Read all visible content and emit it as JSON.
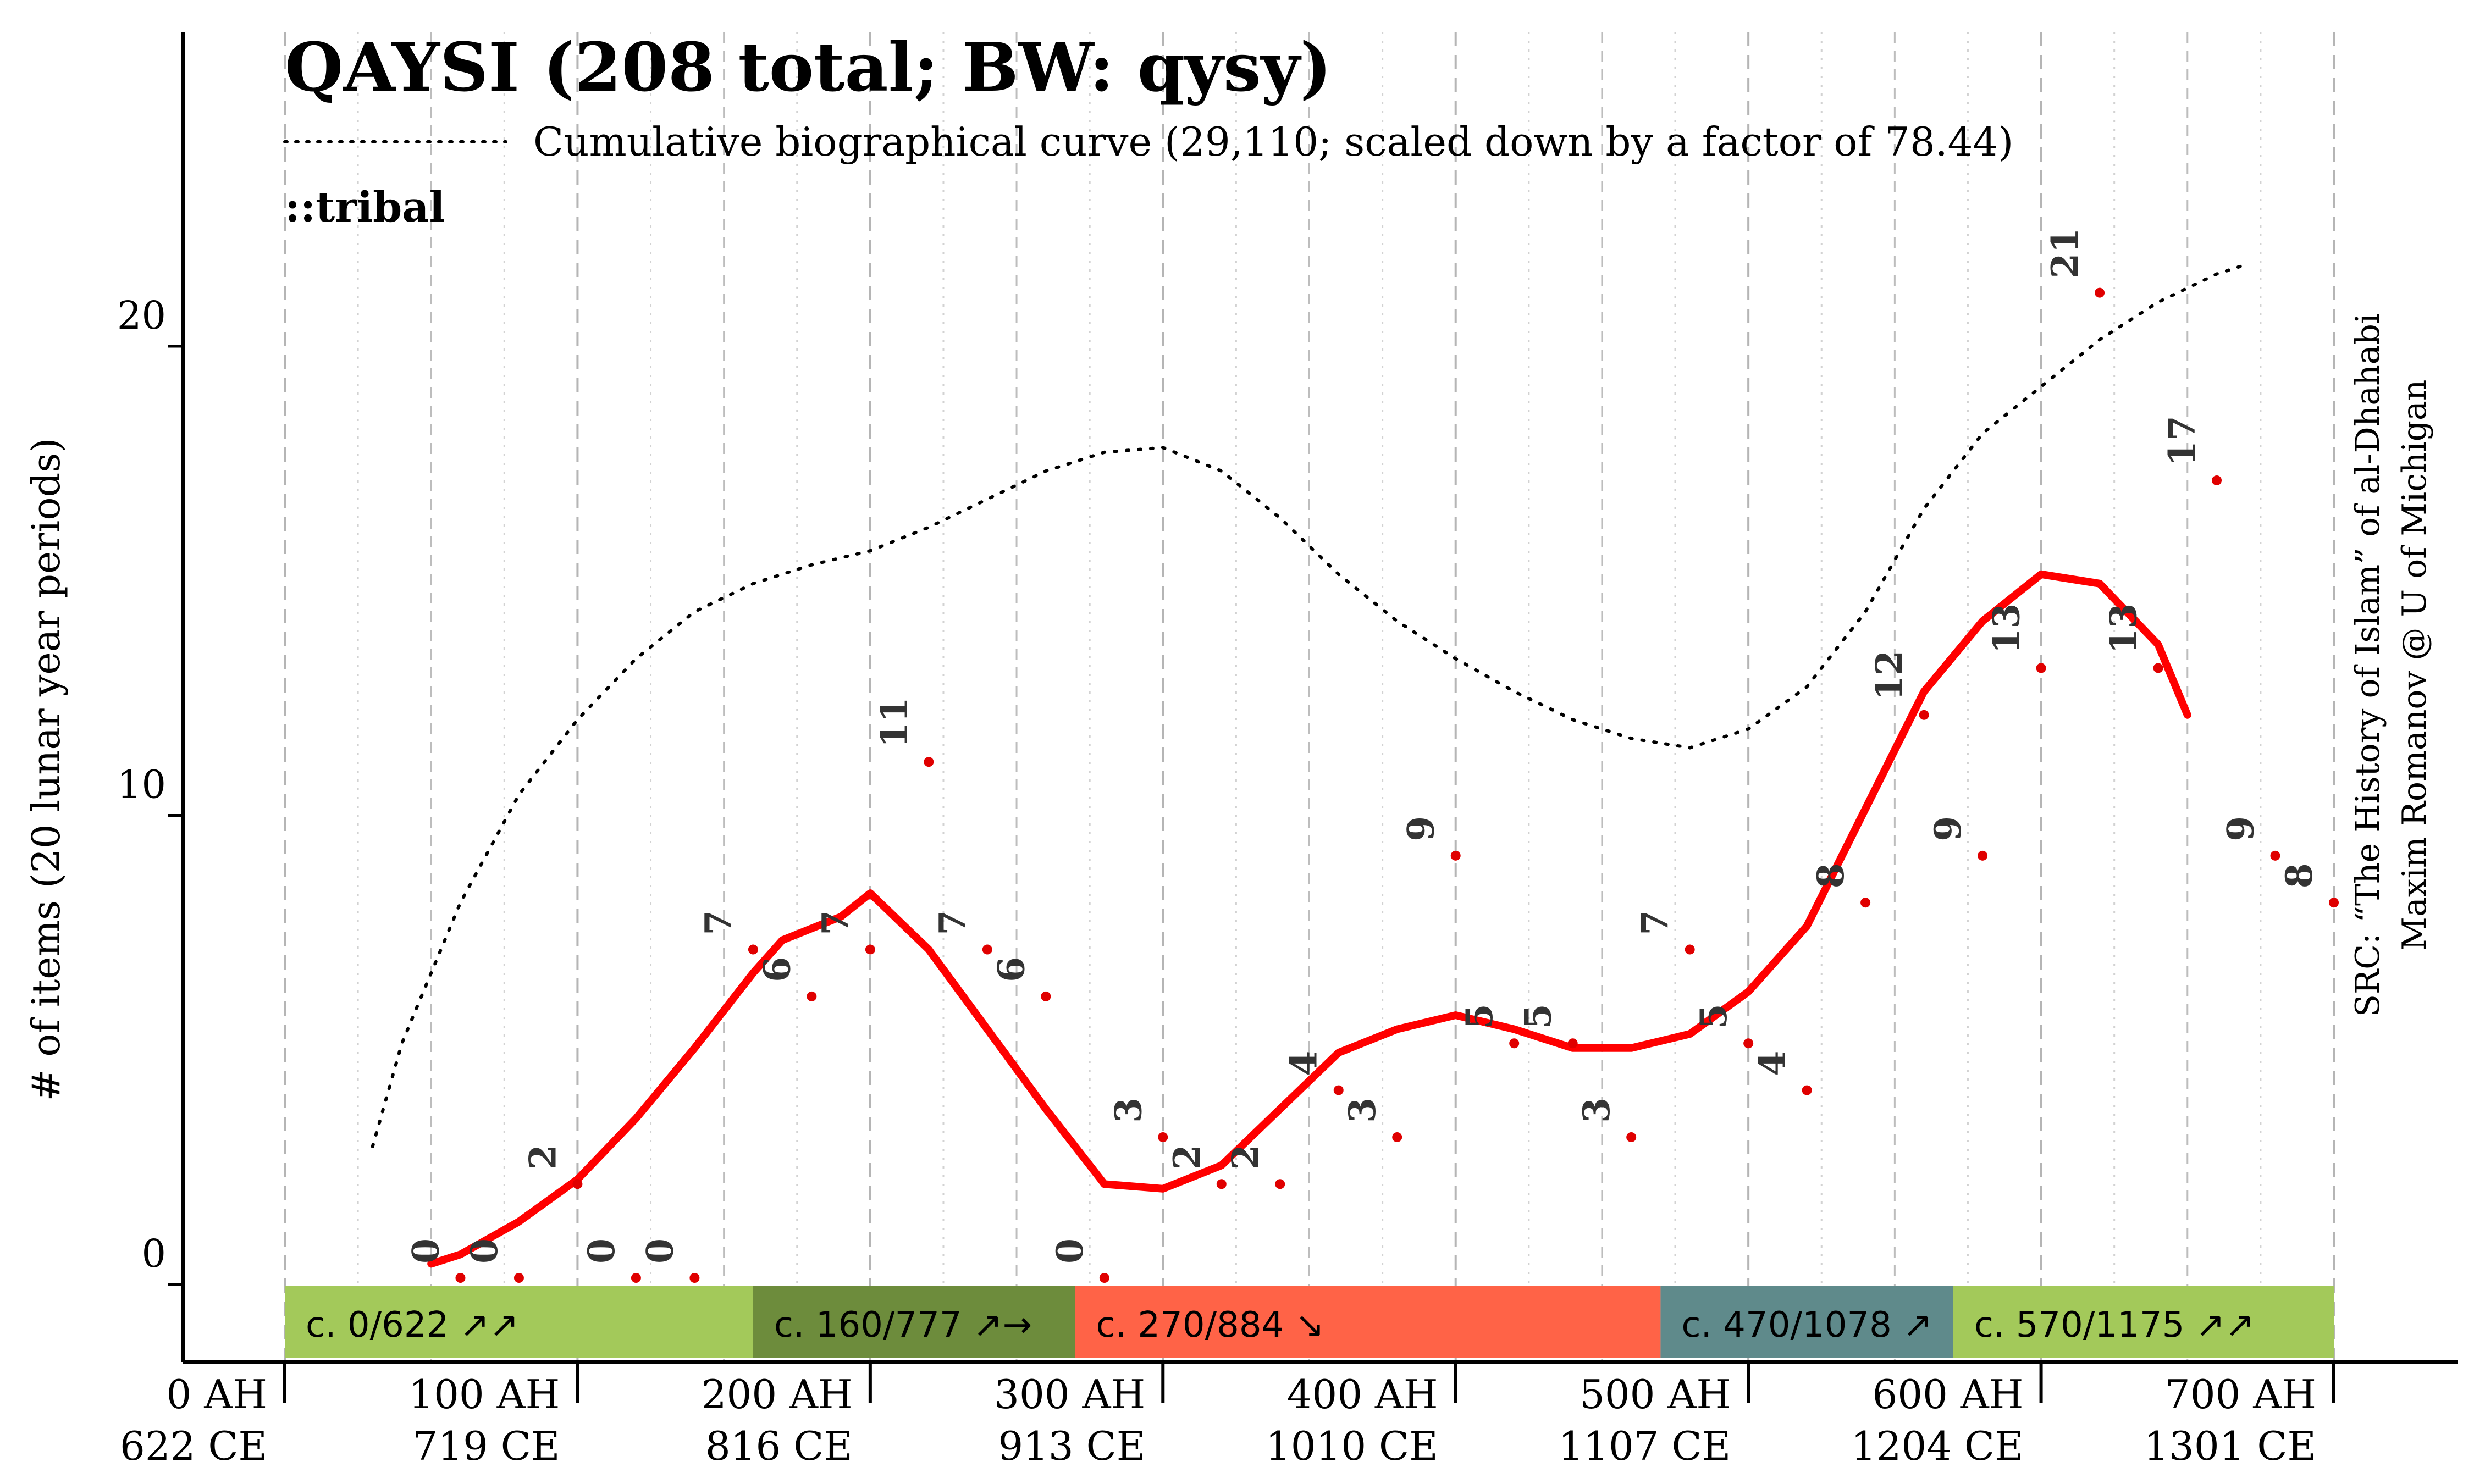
{
  "title": "QAYSI (208 total; BW: qysy)",
  "curve_legend": "Cumulative biographical curve (29,110; scaled down by a factor of 78.44)",
  "tag": "::tribal",
  "ylabel": "# of items (20 lunar year periods)",
  "source_line1": "SRC: “The History of Islam” of al-Dhahabi",
  "source_line2": "Maxim Romanov @ U of Michigan",
  "colors": {
    "points": "#e00000",
    "trend": "#ff0000",
    "cumulative": "#000000",
    "period_green": "#a3c95a",
    "period_darkgreen": "#6d8c3c",
    "period_red": "#ff6347",
    "period_teal": "#5f8a8b",
    "period_green2": "#a3c95a"
  },
  "chart_data": {
    "type": "line",
    "x_unit": "AH",
    "xlim": [
      0,
      700
    ],
    "ylim": [
      0,
      20
    ],
    "y_ticks": [
      0,
      10,
      20
    ],
    "x_ticks": [
      {
        "ah": 0,
        "label_ah": "0 AH",
        "label_ce": "622 CE"
      },
      {
        "ah": 100,
        "label_ah": "100 AH",
        "label_ce": "719 CE"
      },
      {
        "ah": 200,
        "label_ah": "200 AH",
        "label_ce": "816 CE"
      },
      {
        "ah": 300,
        "label_ah": "300 AH",
        "label_ce": "913 CE"
      },
      {
        "ah": 400,
        "label_ah": "400 AH",
        "label_ce": "1010 CE"
      },
      {
        "ah": 500,
        "label_ah": "500 AH",
        "label_ce": "1107 CE"
      },
      {
        "ah": 600,
        "label_ah": "600 AH",
        "label_ce": "1204 CE"
      },
      {
        "ah": 700,
        "label_ah": "700 AH",
        "label_ce": "1301 CE"
      }
    ],
    "grid": {
      "major_dashed_every": 100,
      "minor_dotted_every": 25
    },
    "points": [
      {
        "x": 60,
        "y": 0,
        "label": "0"
      },
      {
        "x": 80,
        "y": 0,
        "label": "0"
      },
      {
        "x": 100,
        "y": 2,
        "label": "2"
      },
      {
        "x": 120,
        "y": 0,
        "label": "0"
      },
      {
        "x": 140,
        "y": 0,
        "label": "0"
      },
      {
        "x": 160,
        "y": 7,
        "label": "7"
      },
      {
        "x": 180,
        "y": 6,
        "label": "6"
      },
      {
        "x": 200,
        "y": 7,
        "label": "7"
      },
      {
        "x": 220,
        "y": 11,
        "label": "11"
      },
      {
        "x": 240,
        "y": 7,
        "label": "7"
      },
      {
        "x": 260,
        "y": 6,
        "label": "6"
      },
      {
        "x": 280,
        "y": 0,
        "label": "0"
      },
      {
        "x": 300,
        "y": 3,
        "label": "3"
      },
      {
        "x": 320,
        "y": 2,
        "label": "2"
      },
      {
        "x": 340,
        "y": 2,
        "label": "2"
      },
      {
        "x": 360,
        "y": 4,
        "label": "4"
      },
      {
        "x": 380,
        "y": 3,
        "label": "3"
      },
      {
        "x": 400,
        "y": 9,
        "label": "9"
      },
      {
        "x": 420,
        "y": 5,
        "label": "5"
      },
      {
        "x": 440,
        "y": 5,
        "label": "5"
      },
      {
        "x": 460,
        "y": 3,
        "label": "3"
      },
      {
        "x": 480,
        "y": 7,
        "label": "7"
      },
      {
        "x": 500,
        "y": 5,
        "label": "5"
      },
      {
        "x": 520,
        "y": 4,
        "label": "4"
      },
      {
        "x": 540,
        "y": 8,
        "label": "8"
      },
      {
        "x": 560,
        "y": 12,
        "label": "12"
      },
      {
        "x": 580,
        "y": 9,
        "label": "9"
      },
      {
        "x": 600,
        "y": 13,
        "label": "13"
      },
      {
        "x": 620,
        "y": 21,
        "label": "21"
      },
      {
        "x": 640,
        "y": 13,
        "label": "13"
      },
      {
        "x": 660,
        "y": 17,
        "label": "17"
      },
      {
        "x": 680,
        "y": 9,
        "label": "9"
      },
      {
        "x": 700,
        "y": 8,
        "label": "8"
      }
    ],
    "trend": {
      "x": [
        50,
        60,
        80,
        100,
        120,
        140,
        160,
        170,
        190,
        200,
        220,
        240,
        260,
        280,
        300,
        320,
        340,
        360,
        380,
        400,
        420,
        440,
        460,
        480,
        500,
        520,
        540,
        560,
        580,
        600,
        620,
        640,
        650
      ],
      "y": [
        0.3,
        0.5,
        1.2,
        2.1,
        3.4,
        4.9,
        6.5,
        7.2,
        7.7,
        8.2,
        7.0,
        5.3,
        3.6,
        2.0,
        1.9,
        2.4,
        3.6,
        4.8,
        5.3,
        5.6,
        5.3,
        4.9,
        4.9,
        5.2,
        6.1,
        7.5,
        10.0,
        12.5,
        14.0,
        15.0,
        14.8,
        13.5,
        12.0
      ]
    },
    "cumulative": {
      "x": [
        30,
        40,
        60,
        80,
        100,
        120,
        140,
        160,
        180,
        200,
        220,
        240,
        260,
        280,
        300,
        320,
        340,
        360,
        380,
        400,
        420,
        440,
        460,
        480,
        500,
        520,
        540,
        560,
        580,
        600,
        620,
        640,
        660,
        670
      ],
      "y": [
        2.8,
        5.0,
        8.0,
        10.3,
        11.9,
        13.2,
        14.2,
        14.8,
        15.2,
        15.5,
        16.0,
        16.6,
        17.2,
        17.6,
        17.7,
        17.2,
        16.2,
        15.0,
        14.0,
        13.2,
        12.5,
        11.9,
        11.5,
        11.3,
        11.7,
        12.6,
        14.2,
        16.4,
        18.0,
        19.0,
        20.0,
        20.8,
        21.4,
        21.6
      ]
    },
    "periods": [
      {
        "label": "c. 0/622 ↗↗",
        "start": 0,
        "end": 160,
        "color": "#a3c95a"
      },
      {
        "label": "c. 160/777 ↗→",
        "start": 160,
        "end": 270,
        "color": "#6d8c3c"
      },
      {
        "label": "c. 270/884 ↘",
        "start": 270,
        "end": 470,
        "color": "#ff6347"
      },
      {
        "label": "c. 470/1078 ↗",
        "start": 470,
        "end": 570,
        "color": "#5f8a8b"
      },
      {
        "label": "c. 570/1175 ↗↗",
        "start": 570,
        "end": 700,
        "color": "#a3c95a"
      }
    ]
  }
}
